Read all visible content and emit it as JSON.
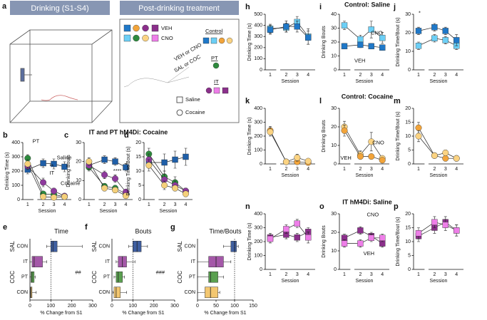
{
  "panel_a": {
    "label": "a",
    "drinking": "Drinking (S1-S4)",
    "post": "Post-drinking treatment",
    "veh": "VEH",
    "cno": "CNO",
    "control": "Control",
    "pt": "PT",
    "it": "IT",
    "veh_or_cno": "VEH or CNO",
    "sal_or_coc": "SAL or COC",
    "saline": "Saline",
    "cocaine": "Cocaine"
  },
  "sections": [
    "IT and PT hM4Di: Cocaine",
    "Control: Saline",
    "Control: Cocaine",
    "IT hM4Di: Saline"
  ],
  "chart_data": [
    {
      "label": "b",
      "type": "line",
      "ylabel": "Drinking Time (s)",
      "xlabel": "Session",
      "categories": [
        "1",
        "2",
        "3",
        "4"
      ],
      "ylim": [
        0,
        400
      ],
      "yticks": [
        0,
        100,
        200,
        300,
        400
      ],
      "annotations": [
        "**"
      ],
      "series": [
        {
          "name": "Saline",
          "color": "#1f5fa8",
          "marker": "square",
          "values": [
            210,
            255,
            250,
            230
          ],
          "errors": [
            30,
            30,
            35,
            35
          ]
        },
        {
          "name": "PT",
          "color": "#2e8b3e",
          "marker": "circle",
          "values": [
            290,
            40,
            35,
            20
          ],
          "errors": [
            25,
            15,
            15,
            10
          ]
        },
        {
          "name": "IT",
          "color": "#8e3a9d",
          "marker": "circle",
          "values": [
            235,
            120,
            60,
            25
          ],
          "errors": [
            25,
            30,
            20,
            10
          ]
        },
        {
          "name": "Cocaine",
          "color": "#f5d07a",
          "marker": "circle",
          "values": [
            250,
            20,
            15,
            20
          ],
          "errors": [
            30,
            10,
            10,
            10
          ]
        }
      ]
    },
    {
      "label": "c",
      "type": "line",
      "ylabel": "Drinking Bouts",
      "xlabel": "Session",
      "categories": [
        "1",
        "2",
        "3",
        "4"
      ],
      "ylim": [
        0,
        30
      ],
      "yticks": [
        0,
        10,
        20,
        30
      ],
      "annotations": [
        "****"
      ],
      "series": [
        {
          "color": "#1f5fa8",
          "marker": "square",
          "values": [
            18,
            21,
            20,
            17
          ],
          "errors": [
            2,
            2,
            2,
            2
          ]
        },
        {
          "color": "#2e8b3e",
          "marker": "circle",
          "values": [
            17,
            7,
            6,
            3
          ],
          "errors": [
            2,
            1.5,
            1.5,
            1
          ]
        },
        {
          "color": "#8e3a9d",
          "marker": "circle",
          "values": [
            18,
            13,
            11,
            4
          ],
          "errors": [
            2,
            2,
            2,
            1
          ]
        },
        {
          "color": "#f5d07a",
          "marker": "circle",
          "values": [
            20,
            6,
            5,
            2
          ],
          "errors": [
            2,
            1.5,
            1.5,
            1
          ]
        }
      ]
    },
    {
      "label": "d",
      "type": "line",
      "ylabel": "Drinking Time/Bout (s)",
      "xlabel": "Session",
      "categories": [
        "1",
        "2",
        "3",
        "4"
      ],
      "ylim": [
        0,
        20
      ],
      "yticks": [
        0,
        5,
        10,
        15,
        20
      ],
      "series": [
        {
          "color": "#1f5fa8",
          "marker": "square",
          "values": [
            13,
            13,
            14,
            15
          ],
          "errors": [
            2,
            3,
            3,
            3
          ]
        },
        {
          "color": "#2e8b3e",
          "marker": "circle",
          "values": [
            16,
            8,
            6,
            3
          ],
          "errors": [
            2,
            2,
            2,
            1
          ]
        },
        {
          "color": "#8e3a9d",
          "marker": "circle",
          "values": [
            14,
            7,
            5,
            3
          ],
          "errors": [
            2,
            2,
            1.5,
            1
          ]
        },
        {
          "color": "#f5d07a",
          "marker": "circle",
          "values": [
            12,
            5,
            4,
            2
          ],
          "errors": [
            2,
            1.5,
            1,
            1
          ]
        }
      ]
    },
    {
      "label": "e",
      "type": "box",
      "title": "Time",
      "xlabel": "% Change from S1",
      "xlim": [
        0,
        300
      ],
      "xticks": [
        0,
        100,
        200,
        300
      ],
      "reference": 100,
      "annotations": [
        "##"
      ],
      "groups": [
        {
          "name": "SAL",
          "categories": [
            "CON"
          ],
          "colors": [
            "#3f5fa0"
          ],
          "boxes": [
            {
              "min": 80,
              "q1": 100,
              "median": 110,
              "q3": 130,
              "max": 250
            }
          ]
        },
        {
          "name": "COC",
          "categories": [
            "IT",
            "PT",
            "CON"
          ],
          "colors": [
            "#a458a8",
            "#5aa050",
            "#f3c770"
          ],
          "boxes": [
            {
              "min": 0,
              "q1": 10,
              "median": 20,
              "q3": 60,
              "max": 80
            },
            {
              "min": 0,
              "q1": 5,
              "median": 10,
              "q3": 20,
              "max": 25
            },
            {
              "min": 0,
              "q1": 2,
              "median": 5,
              "q3": 10,
              "max": 30
            }
          ]
        }
      ]
    },
    {
      "label": "f",
      "type": "box",
      "title": "Bouts",
      "xlabel": "% Change from S1",
      "xlim": [
        0,
        300
      ],
      "xticks": [
        0,
        100,
        200,
        300
      ],
      "reference": 100,
      "annotations": [
        "###"
      ],
      "groups": [
        {
          "name": "SAL",
          "categories": [
            "CON"
          ],
          "colors": [
            "#3f5fa0"
          ],
          "boxes": [
            {
              "min": 80,
              "q1": 100,
              "median": 120,
              "q3": 140,
              "max": 170
            }
          ]
        },
        {
          "name": "COC",
          "categories": [
            "IT",
            "PT",
            "CON"
          ],
          "colors": [
            "#a458a8",
            "#5aa050",
            "#f3c770"
          ],
          "boxes": [
            {
              "min": 20,
              "q1": 30,
              "median": 50,
              "q3": 70,
              "max": 110
            },
            {
              "min": 10,
              "q1": 20,
              "median": 30,
              "q3": 50,
              "max": 60
            },
            {
              "min": 5,
              "q1": 10,
              "median": 20,
              "q3": 40,
              "max": 70
            }
          ]
        }
      ]
    },
    {
      "label": "g",
      "type": "box",
      "title": "Time/Bouts",
      "xlabel": "% Change from S1",
      "xlim": [
        0,
        150
      ],
      "xticks": [
        0,
        50,
        100,
        150
      ],
      "reference": 100,
      "groups": [
        {
          "name": "SAL",
          "categories": [
            "CON"
          ],
          "colors": [
            "#3f5fa0"
          ],
          "boxes": [
            {
              "min": 70,
              "q1": 90,
              "median": 100,
              "q3": 105,
              "max": 110
            }
          ]
        },
        {
          "name": "COC",
          "categories": [
            "IT",
            "PT",
            "CON"
          ],
          "colors": [
            "#a458a8",
            "#5aa050",
            "#f3c770"
          ],
          "boxes": [
            {
              "min": 0,
              "q1": 30,
              "median": 50,
              "q3": 70,
              "max": 90
            },
            {
              "min": 0,
              "q1": 30,
              "median": 35,
              "q3": 55,
              "max": 70
            },
            {
              "min": 0,
              "q1": 20,
              "median": 35,
              "q3": 55,
              "max": 60
            }
          ]
        }
      ]
    },
    {
      "label": "h",
      "type": "line",
      "ylabel": "Drinking Time (s)",
      "xlabel": "Session",
      "categories": [
        "1",
        "2",
        "3",
        "4"
      ],
      "ylim": [
        0,
        500
      ],
      "yticks": [
        0,
        100,
        200,
        300,
        400,
        500
      ],
      "series": [
        {
          "color": "#6ccff6",
          "marker": "square",
          "values": [
            370,
            380,
            430,
            300
          ],
          "errors": [
            40,
            40,
            50,
            70
          ]
        },
        {
          "color": "#1f78c8",
          "marker": "square",
          "values": [
            360,
            390,
            390,
            290
          ],
          "errors": [
            40,
            50,
            50,
            60
          ]
        }
      ]
    },
    {
      "label": "i",
      "type": "line",
      "ylabel": "Drinking Bouts",
      "xlabel": "Session",
      "categories": [
        "1",
        "2",
        "3",
        "4"
      ],
      "ylim": [
        0,
        40
      ],
      "yticks": [
        0,
        10,
        20,
        30,
        40
      ],
      "series": [
        {
          "name": "CNO",
          "color": "#6ccff6",
          "marker": "square",
          "values": [
            32,
            22,
            29,
            23
          ],
          "errors": [
            3,
            3,
            6,
            4
          ]
        },
        {
          "name": "VEH",
          "color": "#1f78c8",
          "marker": "square",
          "values": [
            17,
            18,
            17,
            16
          ],
          "errors": [
            2,
            2,
            2,
            2
          ]
        }
      ]
    },
    {
      "label": "j",
      "type": "line",
      "ylabel": "Drinking Time/Bout (s)",
      "xlabel": "Session",
      "categories": [
        "1",
        "2",
        "3",
        "4"
      ],
      "ylim": [
        0,
        30
      ],
      "yticks": [
        0,
        10,
        20,
        30
      ],
      "annotations": [
        "*"
      ],
      "series": [
        {
          "color": "#6ccff6",
          "marker": "square",
          "values": [
            13,
            17,
            16,
            13
          ],
          "errors": [
            2,
            2,
            2,
            2
          ]
        },
        {
          "color": "#1f78c8",
          "marker": "square",
          "values": [
            21,
            23,
            21,
            16
          ],
          "errors": [
            2,
            2,
            2,
            3
          ]
        }
      ]
    },
    {
      "label": "k",
      "type": "line",
      "ylabel": "Drinking Time (s)",
      "xlabel": "Session",
      "categories": [
        "1",
        "2",
        "3",
        "4"
      ],
      "ylim": [
        0,
        400
      ],
      "yticks": [
        0,
        100,
        200,
        300,
        400
      ],
      "series": [
        {
          "color": "#f2a43a",
          "marker": "circle",
          "values": [
            240,
            15,
            15,
            10
          ],
          "errors": [
            30,
            10,
            10,
            10
          ]
        },
        {
          "color": "#fbd382",
          "marker": "circle",
          "values": [
            230,
            15,
            45,
            20
          ],
          "errors": [
            30,
            10,
            25,
            10
          ]
        }
      ]
    },
    {
      "label": "l",
      "type": "line",
      "ylabel": "Drinking Bouts",
      "xlabel": "Session",
      "categories": [
        "1",
        "2",
        "3",
        "4"
      ],
      "ylim": [
        0,
        30
      ],
      "yticks": [
        0,
        10,
        20,
        30
      ],
      "series": [
        {
          "name": "CNO",
          "color": "#fbd382",
          "marker": "circle",
          "values": [
            20,
            5,
            12,
            3
          ],
          "errors": [
            3,
            2,
            5,
            1
          ]
        },
        {
          "name": "VEH",
          "color": "#f2a43a",
          "marker": "circle",
          "values": [
            18,
            4,
            4,
            2
          ],
          "errors": [
            3,
            1,
            1,
            1
          ]
        }
      ]
    },
    {
      "label": "m",
      "type": "line",
      "ylabel": "Drinking Time/Bout (s)",
      "xlabel": "Session",
      "categories": [
        "1",
        "2",
        "3",
        "4"
      ],
      "ylim": [
        0,
        20
      ],
      "yticks": [
        0,
        5,
        10,
        15,
        20
      ],
      "series": [
        {
          "color": "#f2a43a",
          "marker": "circle",
          "values": [
            13,
            3,
            2,
            2
          ],
          "errors": [
            2,
            1,
            1,
            1
          ]
        },
        {
          "color": "#fbd382",
          "marker": "circle",
          "values": [
            10,
            3,
            4,
            2
          ],
          "errors": [
            2,
            1,
            1,
            1
          ]
        }
      ]
    },
    {
      "label": "n",
      "type": "line",
      "ylabel": "Drinking Time (s)",
      "xlabel": "Session",
      "categories": [
        "1",
        "2",
        "3",
        "4"
      ],
      "ylim": [
        0,
        400
      ],
      "yticks": [
        0,
        100,
        200,
        300,
        400
      ],
      "series": [
        {
          "color": "#8b2f8b",
          "marker": "square",
          "values": [
            230,
            250,
            230,
            270
          ],
          "errors": [
            30,
            30,
            30,
            30
          ]
        },
        {
          "color": "#ee7ee8",
          "marker": "square",
          "values": [
            220,
            290,
            330,
            230
          ],
          "errors": [
            30,
            30,
            30,
            40
          ]
        }
      ]
    },
    {
      "label": "o",
      "type": "line",
      "ylabel": "Drinking Bouts",
      "xlabel": "Session",
      "categories": [
        "1",
        "2",
        "3",
        "4"
      ],
      "ylim": [
        0,
        30
      ],
      "yticks": [
        0,
        10,
        20,
        30
      ],
      "series": [
        {
          "name": "VEH",
          "color": "#8b2f8b",
          "marker": "square",
          "values": [
            17,
            21,
            18,
            14
          ],
          "errors": [
            2,
            2,
            2,
            2
          ]
        },
        {
          "name": "CNO",
          "color": "#ee7ee8",
          "marker": "square",
          "values": [
            14,
            14,
            17,
            17
          ],
          "errors": [
            2,
            2,
            2,
            2
          ]
        }
      ]
    },
    {
      "label": "p",
      "type": "line",
      "ylabel": "Drinking Time/Bout (s)",
      "xlabel": "Session",
      "categories": [
        "1",
        "2",
        "3",
        "4"
      ],
      "ylim": [
        0,
        20
      ],
      "yticks": [
        0,
        5,
        10,
        15,
        20
      ],
      "series": [
        {
          "color": "#8b2f8b",
          "marker": "square",
          "values": [
            12,
            15,
            17,
            14
          ],
          "errors": [
            2,
            2,
            2,
            2
          ]
        },
        {
          "color": "#ee7ee8",
          "marker": "square",
          "values": [
            13,
            17,
            16,
            14
          ],
          "errors": [
            2,
            2,
            2,
            2
          ]
        }
      ]
    }
  ]
}
